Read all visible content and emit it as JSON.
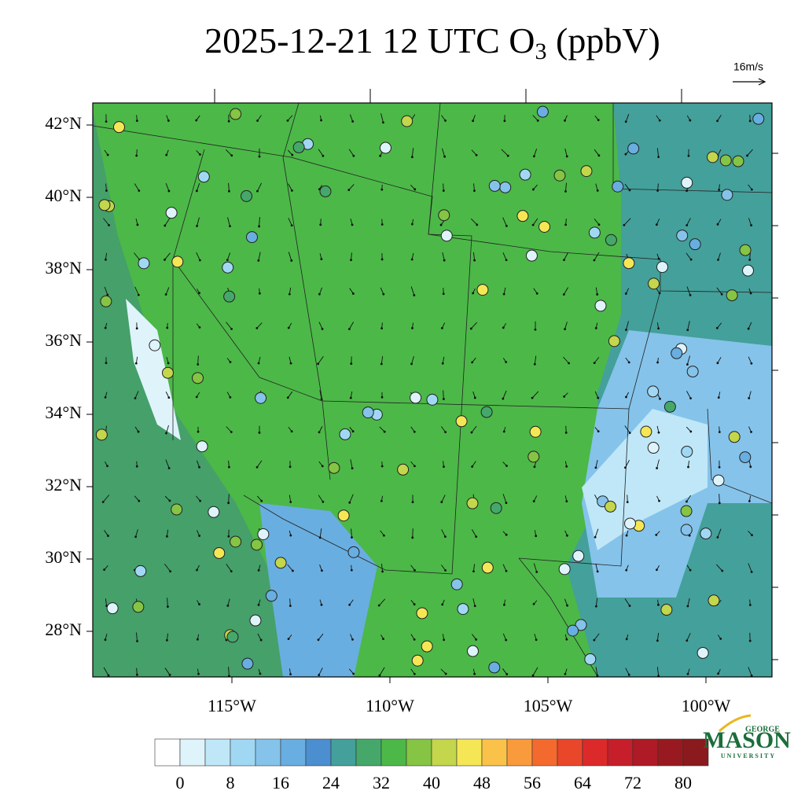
{
  "title": {
    "prefix": "2025-12-21 12 UTC O",
    "subscript": "3",
    "suffix": " (ppbV)"
  },
  "wind_key": "16m/s",
  "lat_labels": [
    {
      "value": 42,
      "label": "42°N"
    },
    {
      "value": 40,
      "label": "40°N"
    },
    {
      "value": 38,
      "label": "38°N"
    },
    {
      "value": 36,
      "label": "36°N"
    },
    {
      "value": 34,
      "label": "34°N"
    },
    {
      "value": 32,
      "label": "32°N"
    },
    {
      "value": 30,
      "label": "30°N"
    },
    {
      "value": 28,
      "label": "28°N"
    }
  ],
  "lon_labels": [
    {
      "value": 115,
      "label": "115°W"
    },
    {
      "value": 110,
      "label": "110°W"
    },
    {
      "value": 105,
      "label": "105°W"
    },
    {
      "value": 100,
      "label": "100°W"
    }
  ],
  "colorbar": {
    "colors": [
      "#ffffff",
      "#dff3fb",
      "#bfe7f8",
      "#a0d8f4",
      "#85c3ea",
      "#69aee0",
      "#4c8fd0",
      "#44a09a",
      "#45a86a",
      "#4cb848",
      "#86c444",
      "#c3d64c",
      "#f5e656",
      "#fbc24a",
      "#f99a3c",
      "#f46a2e",
      "#e8472a",
      "#dc2a2a",
      "#c61e2a",
      "#ae1a25",
      "#981a20",
      "#8a1a1e"
    ],
    "labels": [
      0,
      8,
      16,
      24,
      32,
      40,
      48,
      56,
      64,
      72,
      80
    ]
  },
  "logo": {
    "top": "GEORGE",
    "main": "MASON",
    "bottom": "UNIVERSITY"
  }
}
